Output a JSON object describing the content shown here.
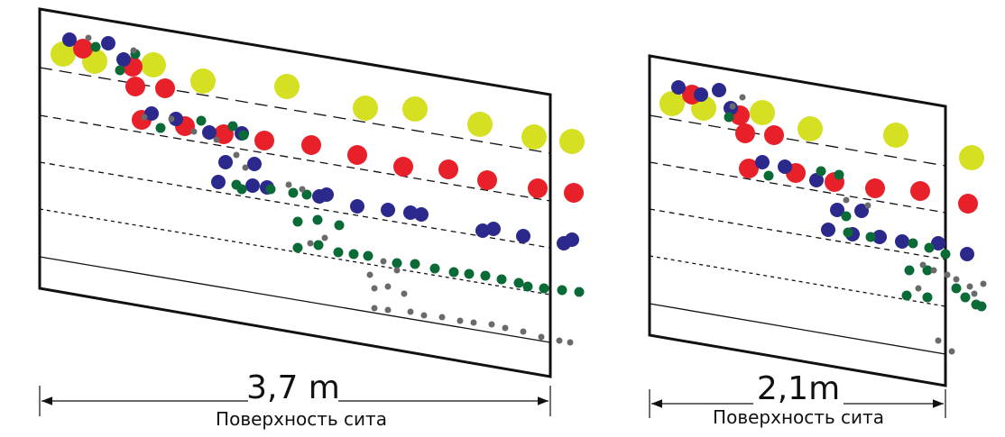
{
  "panels": [
    {
      "length": "3,7 m",
      "caption": "Поверхность сита"
    },
    {
      "length": "2,1m",
      "caption": "Поверхность сита"
    }
  ]
}
